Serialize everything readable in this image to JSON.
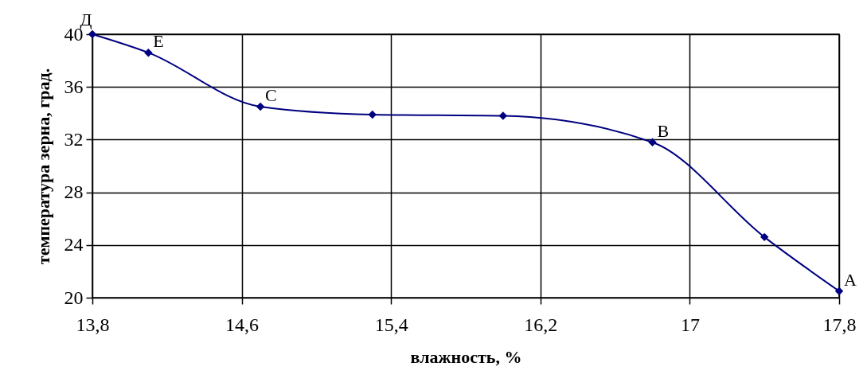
{
  "chart_data": {
    "type": "line",
    "xlabel": "влажность, %",
    "ylabel": "температура зерна, град.",
    "x": [
      13.8,
      14.1,
      14.7,
      15.3,
      16.0,
      16.8,
      17.4,
      17.8
    ],
    "series": [
      {
        "color": "#000080",
        "values": [
          40,
          38.6,
          34.5,
          33.9,
          33.8,
          31.8,
          24.6,
          20.5
        ]
      }
    ],
    "xlim": [
      13.8,
      17.8
    ],
    "xticks": [
      {
        "value": 13.8,
        "label": "13,8"
      },
      {
        "value": 14.6,
        "label": "14,6"
      },
      {
        "value": 15.4,
        "label": "15,4"
      },
      {
        "value": 16.2,
        "label": "16,2"
      },
      17,
      {
        "value": 17.8,
        "label": "17,8"
      }
    ],
    "ylim": [
      20,
      40
    ],
    "yticks": [
      20,
      24,
      28,
      32,
      36,
      40
    ],
    "grid": true,
    "marker": "diamond",
    "line_style": "solid",
    "annotations": [
      {
        "text": "Д",
        "x": 13.8,
        "y": 40
      },
      {
        "text": "E",
        "x": 14.1,
        "y": 38.6
      },
      {
        "text": "C",
        "x": 14.7,
        "y": 34.5
      },
      {
        "text": "B",
        "x": 16.8,
        "y": 31.8
      },
      {
        "text": "A",
        "x": 17.8,
        "y": 20.5
      }
    ]
  }
}
